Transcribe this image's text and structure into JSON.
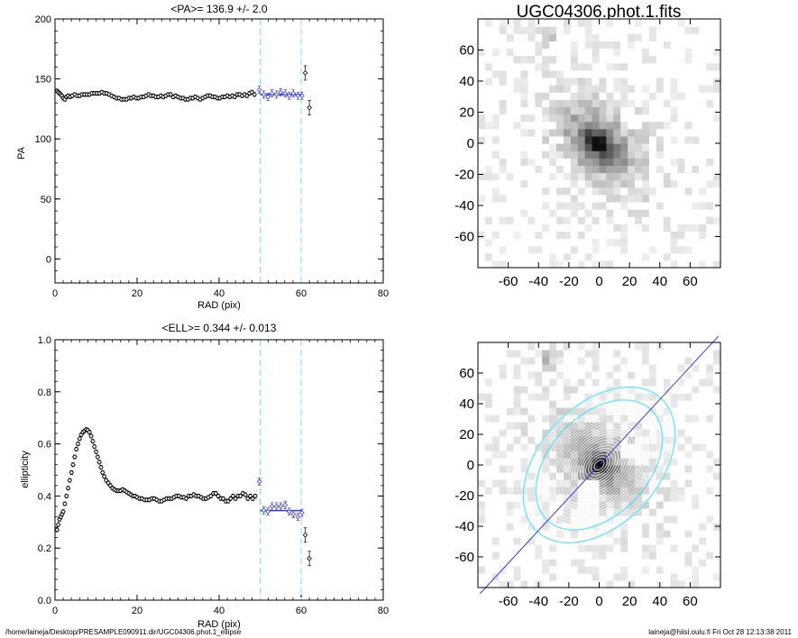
{
  "footer": {
    "path": "/home/laineja/Desktop/PRESAMPLE090911.dir/UGC04306.phot.1_ellipse",
    "stamp": "laineja@hiisi.oulu.fi  Fri Oct 28 12:13:38 2011"
  },
  "colors": {
    "fit": "#3b3bd0",
    "marker": "#6fe6f2",
    "axes": "#000000",
    "points": "#000000"
  },
  "chart_data": [
    {
      "type": "scatter",
      "title": "<PA>= 136.9 +/-   2.0",
      "xlabel": "RAD (pix)",
      "ylabel": "PA",
      "xlim": [
        0,
        80
      ],
      "ylim": [
        -20,
        200
      ],
      "xticks": [
        "0",
        "20",
        "40",
        "60",
        "80"
      ],
      "yticks": [
        "0",
        "50",
        "100",
        "150",
        "200"
      ],
      "markers": [
        50,
        60
      ],
      "mean_value": 136.9,
      "series": [
        {
          "x": [
            0.5,
            0.8,
            1.1,
            1.4,
            1.7,
            2.0,
            2.4,
            2.8,
            3.2,
            3.7,
            4.2,
            4.8,
            5.4,
            6.0,
            6.6,
            7.2,
            7.8,
            8.4,
            9.0,
            9.6,
            10.2,
            10.8,
            11.4,
            12.0,
            12.6,
            13.2,
            13.8,
            14.4,
            15.0,
            15.6,
            16.2,
            16.8,
            17.4,
            18.0,
            18.6,
            19.2,
            19.8,
            20.4,
            21.0,
            21.6,
            22.2,
            22.8,
            23.4,
            24.0,
            24.6,
            25.2,
            25.8,
            26.4,
            27.0,
            27.6,
            28.2,
            28.8,
            29.4,
            30.0,
            30.6,
            31.2,
            31.8,
            32.4,
            33.0,
            33.6,
            34.2,
            34.8,
            35.4,
            36.0,
            36.6,
            37.2,
            37.8,
            38.4,
            39.0,
            39.6,
            40.2,
            40.8,
            41.4,
            42.0,
            42.6,
            43.2,
            43.8,
            44.4,
            45.0,
            45.6,
            46.2,
            46.8,
            47.4,
            48.0,
            48.6
          ],
          "y": [
            140,
            139,
            138,
            137,
            136,
            134,
            133,
            135,
            136,
            135,
            136,
            137,
            136,
            136,
            137,
            137,
            137,
            137,
            138,
            138,
            138,
            138,
            139,
            138,
            138,
            137,
            136,
            135,
            134,
            134,
            133,
            133,
            133,
            134,
            134,
            135,
            134,
            134,
            135,
            135,
            136,
            137,
            136,
            136,
            135,
            135,
            136,
            135,
            136,
            137,
            137,
            135,
            136,
            135,
            134,
            134,
            133,
            133,
            134,
            134,
            135,
            134,
            133,
            134,
            135,
            136,
            136,
            135,
            135,
            134,
            134,
            135,
            135,
            136,
            135,
            136,
            135,
            137,
            137,
            136,
            137,
            136,
            138,
            139,
            137
          ]
        },
        {
          "x": [
            49.8,
            50.9,
            51.9,
            52.9,
            54.0,
            55.0,
            56.1,
            57.1,
            58.1,
            59.2,
            60.2
          ],
          "y": [
            141,
            137,
            135,
            138,
            137,
            139,
            138,
            136,
            138,
            136,
            136
          ]
        },
        {
          "x": [
            61.0,
            62.0
          ],
          "y": [
            155,
            126
          ]
        }
      ]
    },
    {
      "type": "image",
      "title": "UGC04306.phot.1.fits",
      "xlim": [
        -80,
        80
      ],
      "ylim": [
        -80,
        80
      ],
      "xticks": [
        "-60",
        "-40",
        "-20",
        "0",
        "20",
        "40",
        "60"
      ],
      "yticks": [
        "60",
        "40",
        "20",
        "0",
        "-20",
        "-40",
        "-60"
      ]
    },
    {
      "type": "scatter",
      "title": "<ELL>= 0.344 +/-  0.013",
      "xlabel": "RAD (pix)",
      "ylabel": "ellipticity",
      "xlim": [
        0,
        80
      ],
      "ylim": [
        0,
        1
      ],
      "xticks": [
        "0",
        "20",
        "40",
        "60",
        "80"
      ],
      "yticks": [
        "0.0",
        "0.2",
        "0.4",
        "0.6",
        "0.8",
        "1.0"
      ],
      "markers": [
        50,
        60
      ],
      "mean_value": 0.344,
      "series": [
        {
          "x": [
            0.5,
            0.8,
            1.1,
            1.4,
            1.7,
            2.0,
            2.4,
            2.8,
            3.2,
            3.6,
            4.0,
            4.4,
            4.8,
            5.2,
            5.6,
            6.0,
            6.4,
            6.8,
            7.2,
            7.6,
            8.0,
            8.4,
            8.8,
            9.2,
            9.6,
            10.0,
            10.4,
            10.8,
            11.2,
            11.6,
            12.0,
            12.5,
            13.0,
            13.5,
            14.0,
            14.5,
            15.0,
            15.5,
            16.0,
            16.5,
            17.0,
            17.5,
            18.0,
            18.5,
            19.0,
            19.5,
            20.0,
            20.6,
            21.2,
            21.8,
            22.4,
            23.0,
            23.6,
            24.2,
            24.8,
            25.4,
            26.0,
            26.6,
            27.2,
            27.8,
            28.4,
            29.0,
            29.6,
            30.2,
            30.8,
            31.4,
            32.0,
            32.6,
            33.2,
            33.8,
            34.4,
            35.0,
            35.6,
            36.2,
            36.8,
            37.4,
            38.0,
            38.6,
            39.2,
            39.8,
            40.4,
            41.0,
            41.6,
            42.2,
            42.8,
            43.4,
            44.0,
            44.6,
            45.2,
            45.8,
            46.4,
            47.0,
            47.6,
            48.2,
            48.8
          ],
          "y": [
            0.27,
            0.29,
            0.31,
            0.32,
            0.33,
            0.34,
            0.37,
            0.4,
            0.43,
            0.46,
            0.49,
            0.52,
            0.55,
            0.58,
            0.6,
            0.62,
            0.635,
            0.645,
            0.65,
            0.655,
            0.653,
            0.645,
            0.63,
            0.61,
            0.59,
            0.57,
            0.55,
            0.53,
            0.51,
            0.49,
            0.475,
            0.46,
            0.45,
            0.44,
            0.43,
            0.425,
            0.42,
            0.42,
            0.42,
            0.425,
            0.42,
            0.415,
            0.41,
            0.405,
            0.4,
            0.4,
            0.395,
            0.39,
            0.39,
            0.385,
            0.385,
            0.385,
            0.39,
            0.39,
            0.385,
            0.38,
            0.38,
            0.385,
            0.39,
            0.39,
            0.39,
            0.395,
            0.4,
            0.4,
            0.395,
            0.395,
            0.39,
            0.4,
            0.4,
            0.405,
            0.4,
            0.4,
            0.395,
            0.39,
            0.39,
            0.395,
            0.4,
            0.41,
            0.41,
            0.4,
            0.39,
            0.39,
            0.38,
            0.38,
            0.39,
            0.4,
            0.39,
            0.4,
            0.4,
            0.41,
            0.405,
            0.39,
            0.4,
            0.39,
            0.4
          ]
        },
        {
          "x": [
            49.8,
            50.9,
            51.9,
            52.9,
            54.0,
            55.0,
            56.1,
            57.1,
            58.1,
            59.2,
            60.2
          ],
          "y": [
            0.455,
            0.345,
            0.34,
            0.36,
            0.36,
            0.36,
            0.365,
            0.34,
            0.33,
            0.32,
            0.335
          ]
        },
        {
          "x": [
            61.0,
            62.0
          ],
          "y": [
            0.25,
            0.16
          ]
        }
      ]
    },
    {
      "type": "image",
      "title": "",
      "xlim": [
        -80,
        80
      ],
      "ylim": [
        -80,
        80
      ],
      "xticks": [
        "-60",
        "-40",
        "-20",
        "0",
        "20",
        "40",
        "60"
      ],
      "yticks": [
        "60",
        "40",
        "20",
        "0",
        "-20",
        "-40",
        "-60"
      ],
      "pa_line_deg": 136.9,
      "ellipticity": 0.344
    }
  ]
}
